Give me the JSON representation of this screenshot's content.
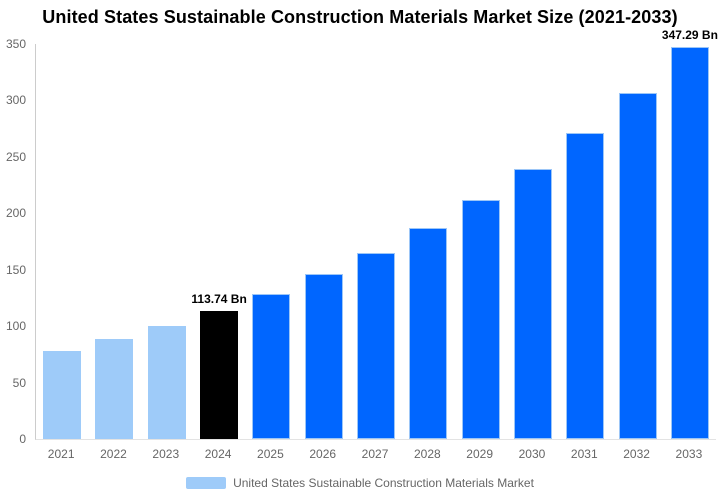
{
  "title": "United States Sustainable Construction Materials Market Size (2021-2033)",
  "legend": {
    "label": "United States Sustainable Construction Materials Market"
  },
  "colors": {
    "historical": "#9ECBF9",
    "base_year": "#000000",
    "forecast": "#0066FF",
    "bar_border": "#9CC6F7",
    "axis_line": "#CCCCCC",
    "baseline": "#E3E3E3",
    "tick_text": "#666666",
    "legend_text": "#666666",
    "data_label_text": "#000000",
    "background": "#FFFFFF"
  },
  "chart_data": {
    "type": "bar",
    "title": "United States Sustainable Construction Materials Market Size (2021-2033)",
    "unit": "Bn",
    "categories": [
      "2021",
      "2022",
      "2023",
      "2024",
      "2025",
      "2026",
      "2027",
      "2028",
      "2029",
      "2030",
      "2031",
      "2032",
      "2033"
    ],
    "values": [
      78.4,
      88.8,
      100.5,
      113.74,
      128.8,
      145.8,
      165.0,
      186.8,
      211.5,
      239.4,
      271.0,
      306.8,
      347.29
    ],
    "roles": [
      "historical",
      "historical",
      "historical",
      "base_year",
      "forecast",
      "forecast",
      "forecast",
      "forecast",
      "forecast",
      "forecast",
      "forecast",
      "forecast",
      "forecast"
    ],
    "data_labels": {
      "2024": "113.74 Bn",
      "2033": "347.29 Bn"
    },
    "ylim": [
      0,
      350
    ],
    "yticks": [
      0,
      50,
      100,
      150,
      200,
      250,
      300,
      350
    ],
    "xlabel": "",
    "ylabel": "",
    "grid": false,
    "legend_position": "bottom",
    "legend_entries": [
      "United States Sustainable Construction Materials Market"
    ]
  }
}
